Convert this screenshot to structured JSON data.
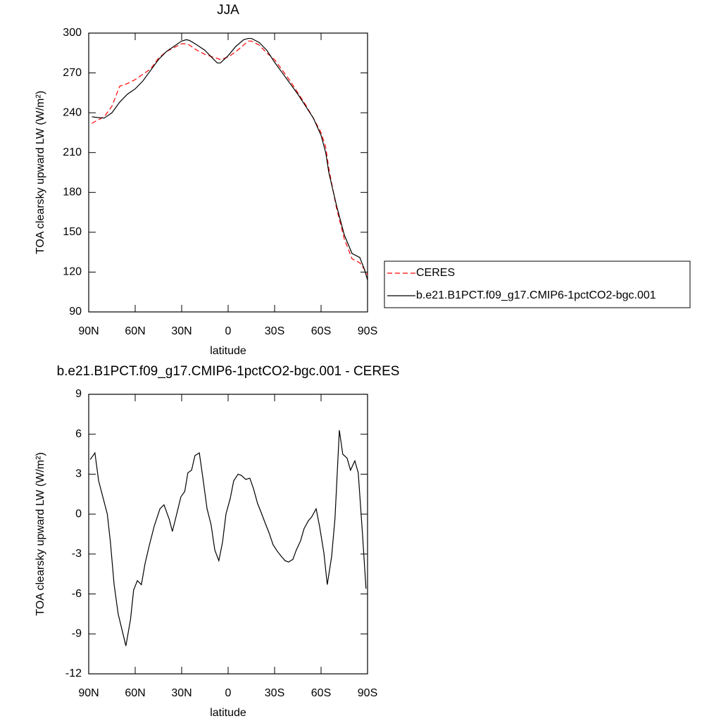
{
  "chart_data": [
    {
      "type": "line",
      "title": "JJA",
      "xlabel": "latitude",
      "ylabel": "TOA clearsky upward LW (W/m²)",
      "xlim": [
        90,
        -90
      ],
      "ylim": [
        90,
        300
      ],
      "xticks": [
        {
          "value": 90,
          "label": "90N"
        },
        {
          "value": 60,
          "label": "60N"
        },
        {
          "value": 30,
          "label": "30N"
        },
        0,
        {
          "value": -30,
          "label": "30S"
        },
        {
          "value": -60,
          "label": "60S"
        },
        {
          "value": -90,
          "label": "90S"
        }
      ],
      "yticks": [
        90,
        120,
        150,
        180,
        210,
        240,
        270,
        300
      ],
      "legend": true,
      "x": [
        88,
        85,
        80,
        75,
        70,
        65,
        60,
        55,
        50,
        45,
        40,
        35,
        30,
        27,
        25,
        20,
        15,
        10,
        7,
        5,
        0,
        -5,
        -10,
        -13,
        -15,
        -20,
        -25,
        -30,
        -35,
        -40,
        -45,
        -50,
        -55,
        -60,
        -63,
        -65,
        -70,
        -75,
        -80,
        -85,
        -88,
        -90
      ],
      "series": [
        {
          "name": "CERES",
          "color": "#ff0000",
          "dashed": true,
          "values": [
            232,
            234,
            237,
            245,
            260,
            262,
            265,
            269,
            273,
            281,
            286,
            289,
            292,
            292,
            291,
            287,
            284,
            282,
            281,
            280,
            282,
            286,
            291,
            294,
            294,
            291,
            285,
            280,
            272,
            264,
            255,
            246,
            236,
            225,
            214,
            198,
            168,
            145,
            130,
            127,
            122,
            118
          ]
        },
        {
          "name": "b.e21.B1PCT.f09_g17.CMIP6-1pctCO2-bgc.001",
          "color": "#000000",
          "dashed": false,
          "values": [
            237,
            236.5,
            236,
            240,
            248,
            254,
            258,
            264,
            272,
            280,
            286,
            290,
            294,
            295,
            294.5,
            291,
            287,
            281,
            277.5,
            277.5,
            283,
            290,
            295,
            296,
            296,
            293,
            287,
            278,
            270,
            262,
            254,
            245,
            236,
            223,
            210,
            195,
            170,
            148,
            134,
            131,
            122,
            114
          ]
        }
      ]
    },
    {
      "type": "line",
      "title": "b.e21.B1PCT.f09_g17.CMIP6-1pctCO2-bgc.001 - CERES",
      "xlabel": "latitude",
      "ylabel": "TOA clearsky upward LW (W/m²)",
      "xlim": [
        90,
        -90
      ],
      "ylim": [
        -12,
        9
      ],
      "xticks": [
        {
          "value": 90,
          "label": "90N"
        },
        {
          "value": 60,
          "label": "60N"
        },
        {
          "value": 30,
          "label": "30N"
        },
        0,
        {
          "value": -30,
          "label": "30S"
        },
        {
          "value": -60,
          "label": "60S"
        },
        {
          "value": -90,
          "label": "90S"
        }
      ],
      "yticks": [
        -12,
        -9,
        -6,
        -3,
        0,
        3,
        6,
        9
      ],
      "legend": false,
      "x": [
        89,
        86,
        83.6,
        78,
        76,
        73.6,
        71,
        66,
        63,
        61,
        58.6,
        56,
        53.6,
        51,
        47.7,
        44,
        41.4,
        38,
        36,
        33,
        30.5,
        28,
        26,
        23.6,
        21.4,
        18.6,
        16.4,
        13.6,
        11,
        8.6,
        6,
        3.6,
        1.4,
        -1.4,
        -3.6,
        -6.4,
        -8.6,
        -11.4,
        -14,
        -16.4,
        -19,
        -21.4,
        -24,
        -26.4,
        -29,
        -31.8,
        -34.5,
        -36.8,
        -39,
        -41.8,
        -44,
        -46.8,
        -49,
        -51.8,
        -54,
        -56.8,
        -59,
        -61.8,
        -64,
        -66.8,
        -69,
        -71.8,
        -74,
        -76.8,
        -79,
        -81.8,
        -84,
        -86.8,
        -89
      ],
      "series": [
        {
          "color": "#000000",
          "dashed": false,
          "values": [
            4.1,
            4.6,
            2.5,
            0,
            -2.1,
            -5.3,
            -7.5,
            -9.9,
            -7.9,
            -5.7,
            -5.0,
            -5.3,
            -3.7,
            -2.4,
            -0.9,
            0.4,
            0.7,
            -0.4,
            -1.3,
            0.1,
            1.3,
            1.7,
            3.1,
            3.3,
            4.4,
            4.6,
            2.8,
            0.4,
            -0.8,
            -2.7,
            -3.5,
            -2.1,
            0,
            1.2,
            2.5,
            3.0,
            2.9,
            2.6,
            2.7,
            1.9,
            0.8,
            0.1,
            -0.7,
            -1.4,
            -2.3,
            -2.8,
            -3.2,
            -3.5,
            -3.6,
            -3.4,
            -2.7,
            -2.0,
            -1.1,
            -0.5,
            -0.2,
            0.4,
            -0.9,
            -2.9,
            -5.3,
            -3.2,
            -0.3,
            6.3,
            4.5,
            4.2,
            3.3,
            4.0,
            3.1,
            -1.6,
            -5.6
          ]
        }
      ]
    }
  ]
}
